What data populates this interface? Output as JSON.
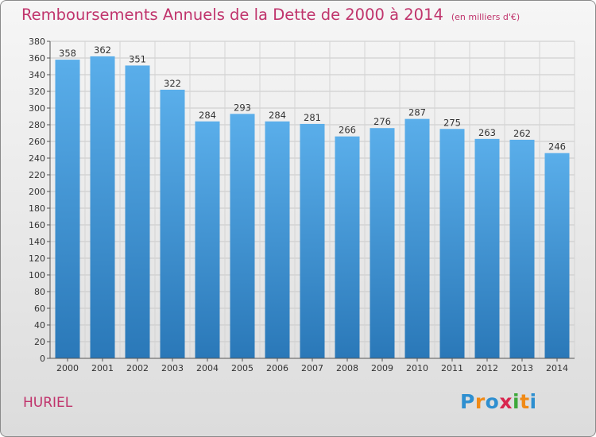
{
  "chart_data": {
    "type": "bar",
    "title": "Remboursements Annuels de la Dette de 2000 à 2014",
    "subtitle": "(en milliers d'€)",
    "categories": [
      "2000",
      "2001",
      "2002",
      "2003",
      "2004",
      "2005",
      "2006",
      "2007",
      "2008",
      "2009",
      "2010",
      "2011",
      "2012",
      "2013",
      "2014"
    ],
    "values": [
      358,
      362,
      351,
      322,
      284,
      293,
      284,
      281,
      266,
      276,
      287,
      275,
      263,
      262,
      246
    ],
    "ylim": [
      0,
      380
    ],
    "yticks": [
      0,
      20,
      40,
      60,
      80,
      100,
      120,
      140,
      160,
      180,
      200,
      220,
      240,
      260,
      280,
      300,
      320,
      340,
      360,
      380
    ],
    "xlabel": "",
    "ylabel": "",
    "grid": true,
    "data_labels": true,
    "colors": {
      "bar_top": "#5aaeea",
      "bar_bottom": "#2a78b8",
      "title": "#c0346c"
    }
  },
  "commune": "HURIEL",
  "logo": {
    "text": "Proxiti",
    "letters": [
      "P",
      "r",
      "o",
      "x",
      "i",
      "t",
      "i"
    ],
    "colors": [
      "#2e8fd0",
      "#f08a16",
      "#2e8fd0",
      "#d8264e",
      "#3da83a",
      "#f08a16",
      "#2e8fd0"
    ]
  }
}
